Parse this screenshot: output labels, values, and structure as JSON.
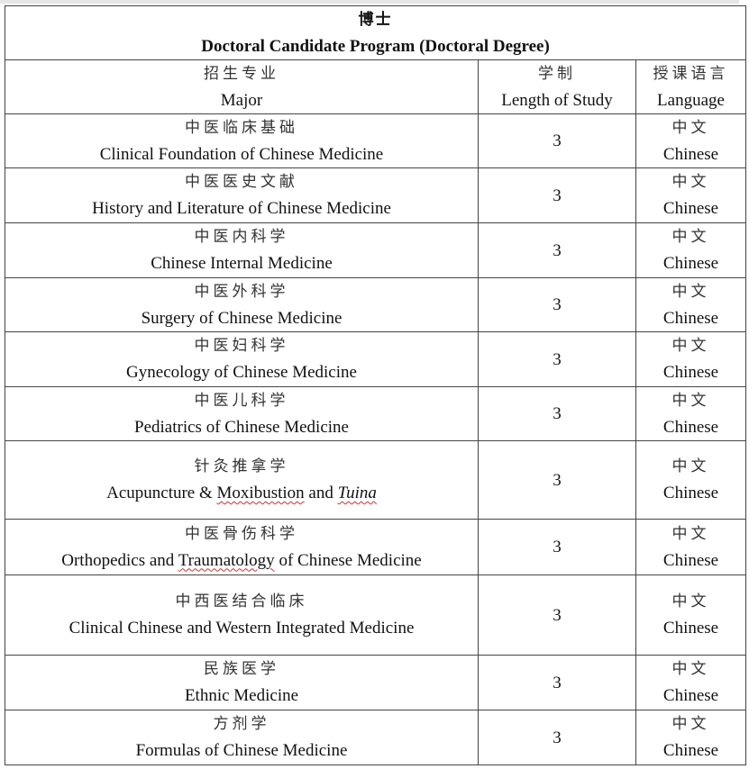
{
  "title": {
    "zh": "博士",
    "en": "Doctoral Candidate Program (Doctoral Degree)"
  },
  "headers": [
    {
      "zh": "招生专业",
      "en": "Major"
    },
    {
      "zh": "学制",
      "en": "Length of Study"
    },
    {
      "zh": "授课语言",
      "en": "Language"
    }
  ],
  "rows": [
    {
      "zh": "中医临床基础",
      "en": [
        {
          "text": "Clinical Foundation of Chinese Medicine"
        }
      ],
      "length": "3",
      "lang_zh": "中文",
      "lang_en": "Chinese"
    },
    {
      "zh": "中医医史文献",
      "en": [
        {
          "text": "History and Literature of Chinese Medicine"
        }
      ],
      "length": "3",
      "lang_zh": "中文",
      "lang_en": "Chinese"
    },
    {
      "zh": "中医内科学",
      "en": [
        {
          "text": "Chinese Internal Medicine"
        }
      ],
      "length": "3",
      "lang_zh": "中文",
      "lang_en": "Chinese"
    },
    {
      "zh": "中医外科学",
      "en": [
        {
          "text": "Surgery of Chinese Medicine"
        }
      ],
      "length": "3",
      "lang_zh": "中文",
      "lang_en": "Chinese"
    },
    {
      "zh": "中医妇科学",
      "en": [
        {
          "text": "Gynecology of Chinese Medicine"
        }
      ],
      "length": "3",
      "lang_zh": "中文",
      "lang_en": "Chinese"
    },
    {
      "zh": "中医儿科学",
      "en": [
        {
          "text": "Pediatrics of Chinese Medicine"
        }
      ],
      "length": "3",
      "lang_zh": "中文",
      "lang_en": "Chinese"
    },
    {
      "zh": "针灸推拿学",
      "en": [
        {
          "text": "Acupuncture & "
        },
        {
          "text": "Moxibustion",
          "wavy": true
        },
        {
          "text": " and "
        },
        {
          "text": "Tuina",
          "italic": true,
          "wavy": true
        }
      ],
      "length": "3",
      "lang_zh": "中文",
      "lang_en": "Chinese"
    },
    {
      "zh": "中医骨伤科学",
      "en": [
        {
          "text": "Orthopedics and "
        },
        {
          "text": "Traumatology",
          "wavy": true
        },
        {
          "text": " of Chinese Medicine"
        }
      ],
      "length": "3",
      "lang_zh": "中文",
      "lang_en": "Chinese"
    },
    {
      "zh": "中西医结合临床",
      "en": [
        {
          "text": "Clinical Chinese and Western Integrated Medicine"
        }
      ],
      "length": "3",
      "lang_zh": "中文",
      "lang_en": "Chinese"
    },
    {
      "zh": "民族医学",
      "en": [
        {
          "text": "Ethnic Medicine"
        }
      ],
      "length": "3",
      "lang_zh": "中文",
      "lang_en": "Chinese"
    },
    {
      "zh": "方剂学",
      "en": [
        {
          "text": "Formulas of Chinese Medicine"
        }
      ],
      "length": "3",
      "lang_zh": "中文",
      "lang_en": "Chinese"
    }
  ]
}
